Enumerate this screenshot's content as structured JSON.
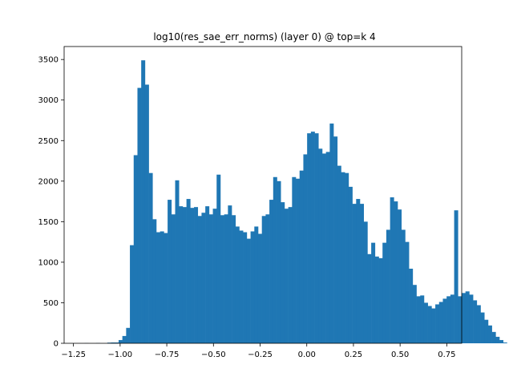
{
  "chart_data": {
    "type": "bar",
    "title": "log10(res_sae_err_norms) (layer 0) @ top=k 4",
    "xlabel": "",
    "ylabel": "",
    "xlim": [
      -1.3,
      0.83
    ],
    "ylim": [
      0,
      3660
    ],
    "xticks": [
      -1.25,
      -1.0,
      -0.75,
      -0.5,
      -0.25,
      0.0,
      0.25,
      0.5,
      0.75
    ],
    "xtick_labels": [
      "−1.25",
      "−1.00",
      "−0.75",
      "−0.50",
      "−0.25",
      "0.00",
      "0.25",
      "0.50",
      "0.75"
    ],
    "yticks": [
      0,
      500,
      1000,
      1500,
      2000,
      2500,
      3000,
      3500
    ],
    "ytick_labels": [
      "0",
      "500",
      "1000",
      "1500",
      "2000",
      "2500",
      "3000",
      "3500"
    ],
    "bar_color": "#1f77b4",
    "grid": false,
    "legend": "none",
    "bin_width": 0.0202,
    "bin_start": -1.19,
    "counts": [
      2,
      0,
      0,
      3,
      0,
      0,
      8,
      10,
      10,
      40,
      90,
      190,
      1210,
      2320,
      3150,
      3490,
      3190,
      2100,
      1530,
      1370,
      1380,
      1360,
      1770,
      1590,
      2010,
      1690,
      1680,
      1780,
      1670,
      1680,
      1570,
      1610,
      1690,
      1590,
      1660,
      2080,
      1580,
      1590,
      1700,
      1580,
      1440,
      1390,
      1370,
      1290,
      1380,
      1440,
      1350,
      1570,
      1590,
      1770,
      2050,
      2000,
      1740,
      1660,
      1680,
      2050,
      2030,
      2130,
      2330,
      2590,
      2610,
      2590,
      2400,
      2340,
      2360,
      2710,
      2550,
      2190,
      2110,
      2100,
      1930,
      1720,
      1780,
      1720,
      1500,
      1100,
      1240,
      1070,
      1050,
      1240,
      1400,
      1800,
      1750,
      1650,
      1400,
      1250,
      920,
      720,
      580,
      590,
      500,
      460,
      430,
      480,
      510,
      550,
      580,
      600,
      1640,
      580,
      620,
      640,
      600,
      530,
      470,
      380,
      290,
      220,
      140,
      80,
      40,
      10
    ]
  }
}
